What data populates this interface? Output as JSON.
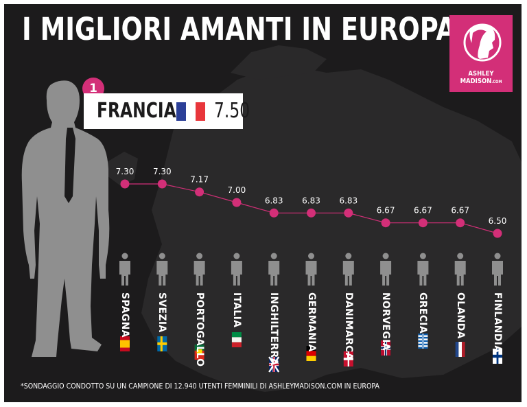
{
  "title": "I MIGLIORI AMANTI IN EUROPA",
  "logo": {
    "line1": "ASHLEY",
    "line2": "MADISON",
    "suffix": ".COM",
    "icon": "woman-silhouette-icon"
  },
  "winner": {
    "rank": "1",
    "country": "FRANCIA",
    "value": "7.50",
    "flag": [
      "#2b3f97",
      "#ffffff",
      "#e8363b"
    ]
  },
  "footnote": "*SONDAGGIO CONDOTTO SU UN CAMPIONE DI 12.940 UTENTI FEMMINILI DI ASHLEYMADISON.COM IN EUROPA",
  "colors": {
    "accent": "#d32f78",
    "background": "#1c1b1c",
    "icon": "#8f8f8f"
  },
  "chart_data": {
    "type": "line",
    "title": "I MIGLIORI AMANTI IN EUROPA",
    "xlabel": "",
    "ylabel": "",
    "categories": [
      "SPAGNA",
      "SVEZIA",
      "PORTOGALLO",
      "ITALIA",
      "INGHILTERRA",
      "GERMANIA",
      "DANIMARCA",
      "NORVEGIA",
      "GRECIA",
      "OLANDA",
      "FINLANDIA"
    ],
    "values": [
      7.3,
      7.3,
      7.17,
      7.0,
      6.83,
      6.83,
      6.83,
      6.67,
      6.67,
      6.67,
      6.5
    ],
    "value_labels": [
      "7.30",
      "7.30",
      "7.17",
      "7.00",
      "6.83",
      "6.83",
      "6.83",
      "6.67",
      "6.67",
      "6.67",
      "6.50"
    ],
    "flags": [
      "spain",
      "sweden",
      "portugal",
      "italy",
      "uk",
      "germany",
      "denmark",
      "norway",
      "greece",
      "netherlands",
      "finland"
    ],
    "ylim": [
      6.5,
      7.3
    ]
  }
}
